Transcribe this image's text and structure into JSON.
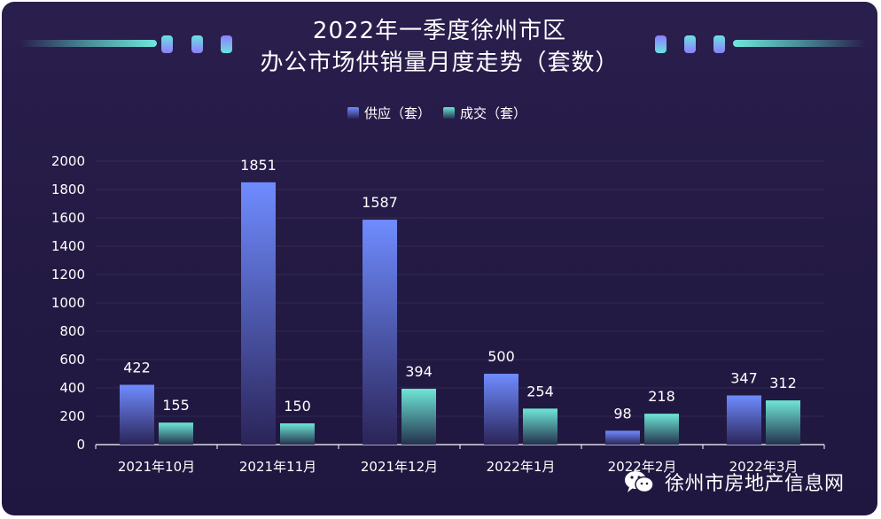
{
  "title_line1": "2022年一季度徐州市区",
  "title_line2": "办公市场供销量月度走势（套数）",
  "watermark": "徐州市房地产信息网",
  "watermark_icon": "wechat-icon",
  "colors": {
    "supply_top": "#6f8cff",
    "supply_bottom": "#2b2458",
    "deal_top": "#6ee6d6",
    "deal_bottom": "#24324e",
    "pill_cyan": "#6ae3e0",
    "pill_purple": "#8f7cff"
  },
  "chart_data": {
    "type": "bar",
    "categories": [
      "2021年10月",
      "2021年11月",
      "2021年12月",
      "2022年1月",
      "2022年2月",
      "2022年3月"
    ],
    "series": [
      {
        "name": "供应（套）",
        "values": [
          422,
          1851,
          1587,
          500,
          98,
          347
        ]
      },
      {
        "name": "成交（套）",
        "values": [
          155,
          150,
          394,
          254,
          218,
          312
        ]
      }
    ],
    "yticks": [
      0,
      200,
      400,
      600,
      800,
      1000,
      1200,
      1400,
      1600,
      1800,
      2000
    ],
    "ylim": [
      0,
      2000
    ],
    "legend_position": "top-center",
    "grid": true
  }
}
